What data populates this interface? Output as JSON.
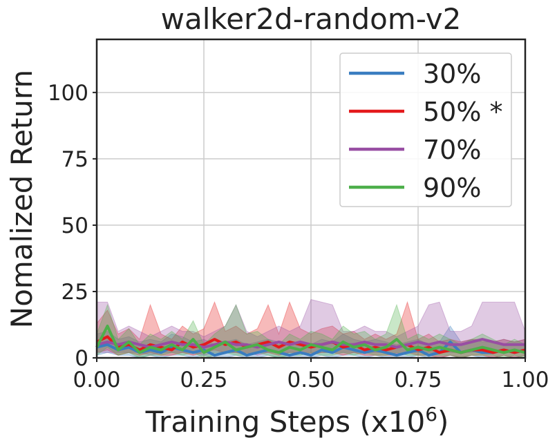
{
  "chart_data": {
    "type": "line",
    "title": "walker2d-random-v2",
    "xlabel": "Training Steps (x10",
    "xlabel_exponent": "6",
    "xlabel_close": ")",
    "ylabel": "Nomalized Return",
    "xlim": [
      0,
      1.0
    ],
    "ylim": [
      0,
      120
    ],
    "xticks": [
      0.0,
      0.25,
      0.5,
      0.75,
      1.0
    ],
    "xtick_labels": [
      "0.00",
      "0.25",
      "0.50",
      "0.75",
      "1.00"
    ],
    "yticks": [
      0,
      25,
      50,
      75,
      100
    ],
    "ytick_labels": [
      "0",
      "25",
      "50",
      "75",
      "100"
    ],
    "grid": true,
    "legend_position": "top-right",
    "x": [
      0.0,
      0.025,
      0.05,
      0.075,
      0.1,
      0.125,
      0.15,
      0.175,
      0.2,
      0.225,
      0.25,
      0.275,
      0.3,
      0.325,
      0.35,
      0.375,
      0.4,
      0.425,
      0.45,
      0.475,
      0.5,
      0.525,
      0.55,
      0.575,
      0.6,
      0.625,
      0.65,
      0.675,
      0.7,
      0.725,
      0.75,
      0.775,
      0.8,
      0.825,
      0.85,
      0.875,
      0.9,
      0.925,
      0.95,
      0.975,
      1.0
    ],
    "series": [
      {
        "name": "30%",
        "color": "#3a7dc0",
        "values": [
          4,
          5,
          3,
          4,
          2,
          3,
          2,
          4,
          3,
          2,
          3,
          1,
          2,
          3,
          1,
          2,
          3,
          2,
          1,
          2,
          1,
          3,
          2,
          4,
          3,
          2,
          3,
          2,
          1,
          2,
          3,
          1,
          2,
          6,
          2,
          3,
          2,
          2,
          3,
          2,
          3
        ],
        "lower": [
          1,
          2,
          1,
          1,
          0,
          1,
          0,
          1,
          1,
          0,
          1,
          0,
          0,
          1,
          0,
          0,
          1,
          0,
          0,
          0,
          0,
          1,
          0,
          1,
          1,
          0,
          1,
          0,
          0,
          0,
          1,
          0,
          0,
          1,
          0,
          1,
          0,
          0,
          1,
          0,
          1
        ],
        "upper": [
          9,
          10,
          7,
          8,
          6,
          7,
          6,
          9,
          8,
          6,
          7,
          5,
          6,
          7,
          5,
          6,
          7,
          6,
          5,
          6,
          5,
          7,
          6,
          9,
          7,
          6,
          7,
          6,
          5,
          6,
          7,
          5,
          6,
          12,
          6,
          7,
          6,
          6,
          7,
          6,
          7
        ]
      },
      {
        "name": "50% *",
        "color": "#e41a1c",
        "values": [
          6,
          8,
          4,
          5,
          3,
          5,
          4,
          3,
          6,
          4,
          5,
          7,
          5,
          6,
          4,
          5,
          6,
          4,
          6,
          5,
          4,
          5,
          6,
          4,
          5,
          3,
          4,
          3,
          4,
          5,
          3,
          4,
          2,
          3,
          2,
          3,
          3,
          2,
          3,
          2,
          3
        ],
        "lower": [
          2,
          3,
          1,
          2,
          1,
          2,
          1,
          1,
          2,
          1,
          2,
          3,
          2,
          2,
          1,
          2,
          2,
          1,
          2,
          2,
          1,
          2,
          2,
          1,
          2,
          1,
          1,
          1,
          1,
          2,
          1,
          1,
          0,
          1,
          0,
          1,
          1,
          0,
          1,
          0,
          1
        ],
        "upper": [
          13,
          18,
          9,
          11,
          7,
          20,
          9,
          7,
          12,
          9,
          11,
          21,
          10,
          12,
          9,
          11,
          20,
          9,
          21,
          11,
          9,
          11,
          12,
          9,
          10,
          7,
          9,
          7,
          9,
          21,
          7,
          9,
          6,
          7,
          6,
          7,
          7,
          6,
          7,
          6,
          7
        ]
      },
      {
        "name": "70%",
        "color": "#984ea3",
        "values": [
          5,
          6,
          5,
          6,
          5,
          4,
          5,
          6,
          5,
          5,
          4,
          5,
          6,
          5,
          5,
          4,
          5,
          6,
          5,
          6,
          5,
          5,
          6,
          5,
          5,
          6,
          5,
          5,
          4,
          5,
          6,
          5,
          6,
          5,
          5,
          6,
          7,
          6,
          5,
          5,
          5
        ],
        "lower": [
          2,
          2,
          2,
          2,
          2,
          1,
          2,
          2,
          2,
          2,
          1,
          2,
          2,
          2,
          2,
          1,
          2,
          2,
          2,
          2,
          2,
          2,
          2,
          2,
          2,
          2,
          2,
          2,
          1,
          2,
          2,
          2,
          2,
          2,
          2,
          2,
          3,
          2,
          2,
          2,
          2
        ],
        "upper": [
          21,
          21,
          10,
          12,
          10,
          8,
          10,
          12,
          10,
          10,
          8,
          10,
          12,
          20,
          10,
          8,
          10,
          12,
          10,
          12,
          22,
          21,
          20,
          10,
          10,
          12,
          10,
          10,
          8,
          10,
          12,
          20,
          21,
          10,
          10,
          12,
          21,
          21,
          21,
          21,
          10
        ]
      },
      {
        "name": "90%",
        "color": "#4daf4a",
        "values": [
          4,
          12,
          3,
          6,
          2,
          4,
          3,
          5,
          3,
          7,
          2,
          4,
          6,
          3,
          4,
          5,
          3,
          2,
          4,
          3,
          5,
          4,
          3,
          6,
          4,
          5,
          3,
          4,
          7,
          3,
          4,
          3,
          4,
          3,
          2,
          3,
          4,
          3,
          2,
          3,
          2
        ],
        "lower": [
          1,
          4,
          1,
          2,
          0,
          1,
          1,
          2,
          1,
          2,
          0,
          1,
          2,
          1,
          1,
          2,
          1,
          0,
          1,
          1,
          2,
          1,
          1,
          2,
          1,
          2,
          1,
          1,
          2,
          1,
          1,
          1,
          1,
          1,
          0,
          1,
          1,
          1,
          0,
          1,
          0
        ],
        "upper": [
          9,
          20,
          7,
          11,
          5,
          9,
          7,
          10,
          7,
          14,
          5,
          9,
          12,
          20,
          9,
          10,
          7,
          5,
          9,
          7,
          10,
          9,
          7,
          12,
          9,
          10,
          7,
          9,
          20,
          7,
          9,
          7,
          9,
          7,
          5,
          7,
          9,
          7,
          5,
          7,
          5
        ]
      }
    ]
  }
}
